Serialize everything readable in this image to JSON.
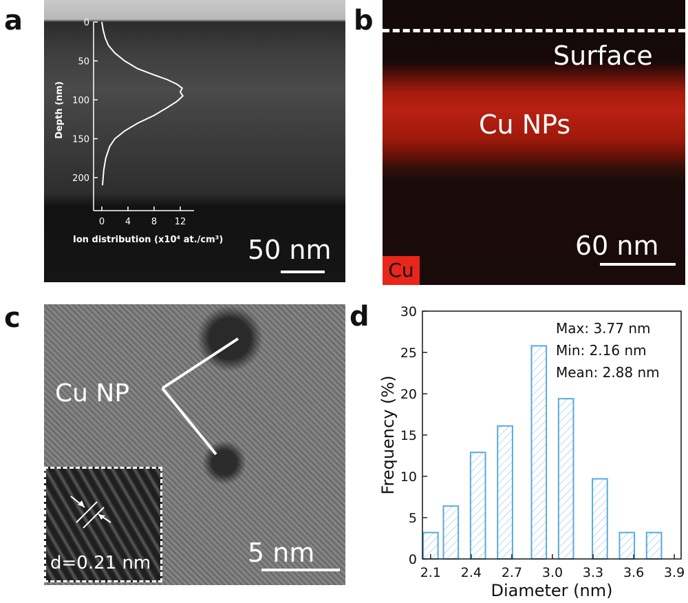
{
  "panels": {
    "a": {
      "letter": "a",
      "scale_text": "50 nm",
      "inset": {
        "ylabel": "Depth (nm)",
        "xlabel": "Ion distribution (x10⁴ at./cm³)",
        "yticks": [
          "0",
          "50",
          "100",
          "150",
          "200"
        ],
        "xticks": [
          "0",
          "4",
          "8",
          "12"
        ]
      }
    },
    "b": {
      "letter": "b",
      "surface_label": "Surface",
      "np_label": "Cu NPs",
      "element_tag": "Cu",
      "scale_text": "60 nm",
      "tag_color": "#e8261b"
    },
    "c": {
      "letter": "c",
      "np_label": "Cu NP",
      "inset_label": "d=0.21 nm",
      "scale_text": "5 nm"
    },
    "d": {
      "letter": "d"
    }
  },
  "chart_data": [
    {
      "type": "line",
      "panel": "a-inset",
      "xlabel": "Ion distribution (x10⁴ at./cm³)",
      "ylabel": "Depth (nm)",
      "xlim": [
        0,
        12
      ],
      "ylim": [
        0,
        210
      ],
      "y_inverted": true,
      "x": [
        0.0,
        0.2,
        0.5,
        1.0,
        2.0,
        3.5,
        5.5,
        8.0,
        10.0,
        11.5,
        12.3,
        12.0,
        12.4,
        11.5,
        10.0,
        8.0,
        5.5,
        3.5,
        2.0,
        1.2,
        0.6,
        0.3,
        0.1
      ],
      "y": [
        0,
        10,
        20,
        30,
        40,
        50,
        60,
        68,
        74,
        80,
        85,
        90,
        95,
        102,
        110,
        120,
        130,
        140,
        150,
        160,
        175,
        190,
        210
      ]
    },
    {
      "type": "bar",
      "panel": "d",
      "xlabel": "Diameter (nm)",
      "ylabel": "Frequency (%)",
      "xlim": [
        2.04,
        3.95
      ],
      "ylim": [
        0,
        30
      ],
      "xticks": [
        2.1,
        2.4,
        2.7,
        3.0,
        3.3,
        3.6,
        3.9
      ],
      "yticks": [
        0,
        5,
        10,
        15,
        20,
        25,
        30
      ],
      "bar_width": 0.1,
      "x": [
        2.15,
        2.3,
        2.45,
        2.6,
        2.75,
        2.9,
        3.05,
        3.2,
        3.35,
        3.5,
        3.65
      ],
      "values": [
        3.2,
        6.4,
        12.9,
        16.1,
        0,
        25.8,
        19.4,
        9.7,
        0,
        3.2,
        3.2
      ],
      "centers": [
        2.1,
        2.25,
        2.45,
        2.65,
        2.9,
        3.1,
        3.35,
        3.55,
        3.75
      ],
      "bars": [
        3.2,
        6.4,
        12.9,
        16.1,
        25.8,
        19.4,
        9.7,
        3.2,
        3.2
      ],
      "annotations": [
        "Max: 3.77 nm",
        "Min: 2.16 nm",
        "Mean: 2.88 nm"
      ],
      "bar_color": "#5aa9dc",
      "grid": false
    }
  ]
}
